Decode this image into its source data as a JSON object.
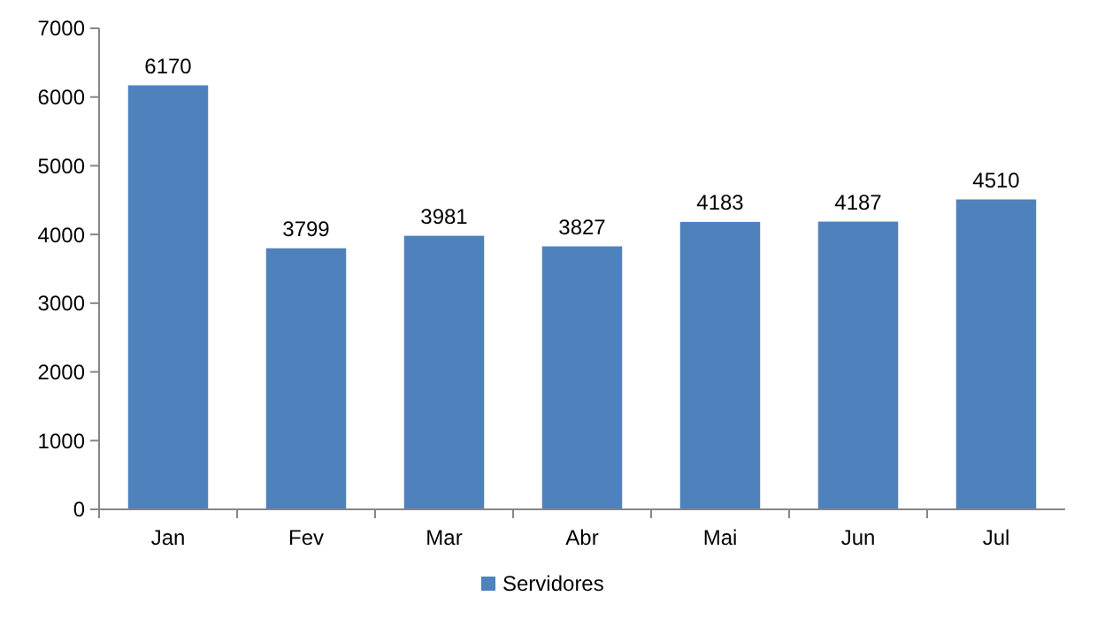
{
  "chart_data": {
    "type": "bar",
    "categories": [
      "Jan",
      "Fev",
      "Mar",
      "Abr",
      "Mai",
      "Jun",
      "Jul"
    ],
    "series": [
      {
        "name": "Servidores",
        "color": "#4f81bd",
        "values": [
          6170,
          3799,
          3981,
          3827,
          4183,
          4187,
          4510
        ]
      }
    ],
    "ylim": [
      0,
      7000
    ],
    "yticks": [
      0,
      1000,
      2000,
      3000,
      4000,
      5000,
      6000,
      7000
    ],
    "data_labels": true,
    "legend": "bottom",
    "grid": false
  }
}
